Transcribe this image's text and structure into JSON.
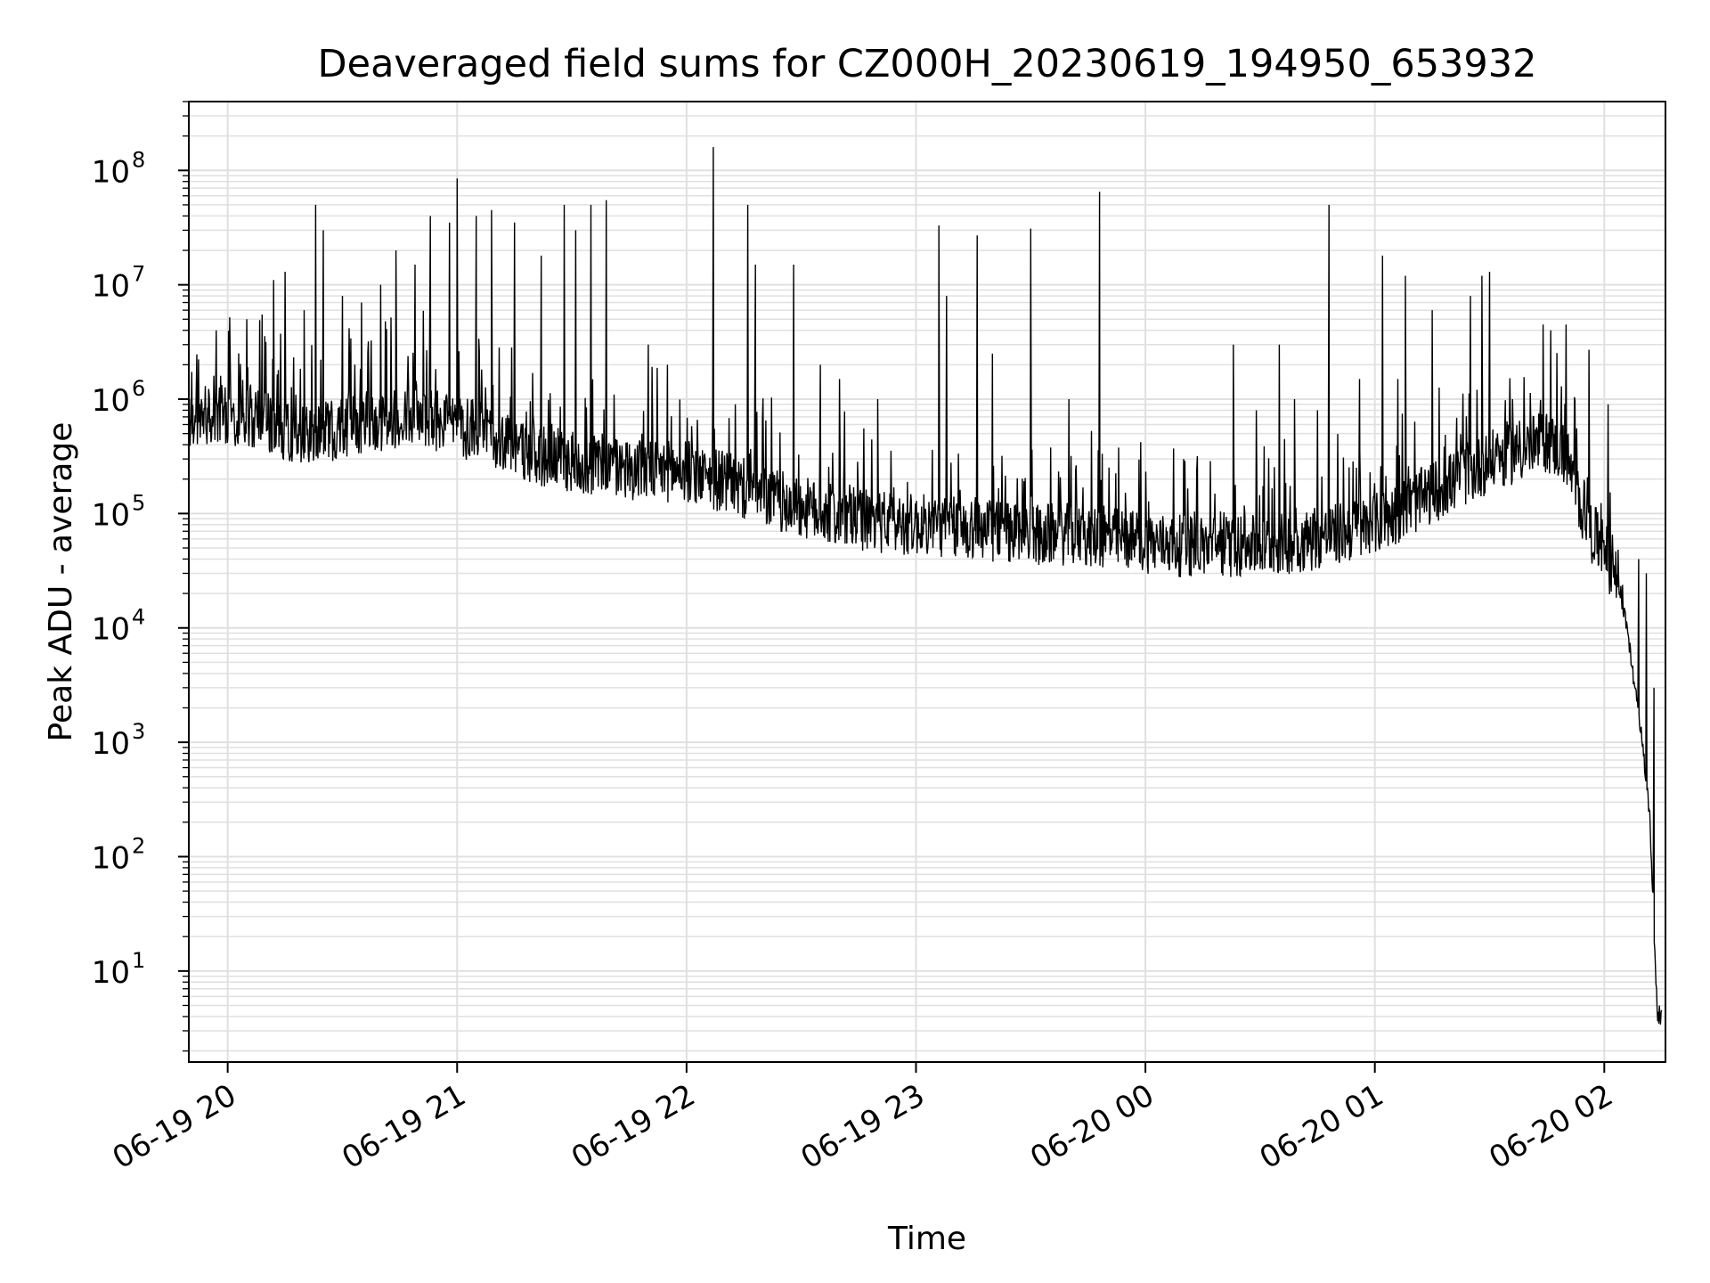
{
  "chart_data": {
    "type": "line",
    "title": "Deaveraged field sums for CZ000H_20230619_194950_653932",
    "xlabel": "Time",
    "ylabel": "Peak ADU - average",
    "x_scale": "time",
    "y_scale": "log",
    "xlim": [
      "2023-06-19 19:49:50",
      "2023-06-20 02:16:00"
    ],
    "ylim": [
      1.6,
      400000000
    ],
    "x_ticks": [
      {
        "label": "06-19 20",
        "time": "2023-06-19 20:00"
      },
      {
        "label": "06-19 21",
        "time": "2023-06-19 21:00"
      },
      {
        "label": "06-19 22",
        "time": "2023-06-19 22:00"
      },
      {
        "label": "06-19 23",
        "time": "2023-06-19 23:00"
      },
      {
        "label": "06-20 00",
        "time": "2023-06-20 00:00"
      },
      {
        "label": "06-20 01",
        "time": "2023-06-20 01:00"
      },
      {
        "label": "06-20 02",
        "time": "2023-06-20 02:00"
      }
    ],
    "y_ticks": [
      {
        "label": "10",
        "exp": "1",
        "value": 10
      },
      {
        "label": "10",
        "exp": "2",
        "value": 100
      },
      {
        "label": "10",
        "exp": "3",
        "value": 1000
      },
      {
        "label": "10",
        "exp": "4",
        "value": 10000
      },
      {
        "label": "10",
        "exp": "5",
        "value": 100000
      },
      {
        "label": "10",
        "exp": "6",
        "value": 1000000
      },
      {
        "label": "10",
        "exp": "7",
        "value": 10000000
      },
      {
        "label": "10",
        "exp": "8",
        "value": 100000000
      }
    ],
    "grid": true,
    "line_color": "#000000",
    "grid_color": "#e0e0e0",
    "series": [
      {
        "points": [
          [
            "2023-06-19 19:50",
            700000
          ],
          [
            "2023-06-19 20:00",
            800000
          ],
          [
            "2023-06-19 20:10",
            650000
          ],
          [
            "2023-06-19 20:20",
            500000
          ],
          [
            "2023-06-19 20:30",
            600000
          ],
          [
            "2023-06-19 20:40",
            700000
          ],
          [
            "2023-06-19 20:50",
            800000
          ],
          [
            "2023-06-19 21:00",
            600000
          ],
          [
            "2023-06-19 21:10",
            500000
          ],
          [
            "2023-06-19 21:20",
            350000
          ],
          [
            "2023-06-19 21:30",
            300000
          ],
          [
            "2023-06-19 21:40",
            280000
          ],
          [
            "2023-06-19 21:50",
            250000
          ],
          [
            "2023-06-19 22:00",
            250000
          ],
          [
            "2023-06-19 22:10",
            200000
          ],
          [
            "2023-06-19 22:20",
            150000
          ],
          [
            "2023-06-19 22:30",
            120000
          ],
          [
            "2023-06-19 22:40",
            100000
          ],
          [
            "2023-06-19 22:50",
            90000
          ],
          [
            "2023-06-19 23:00",
            85000
          ],
          [
            "2023-06-19 23:10",
            80000
          ],
          [
            "2023-06-19 23:20",
            75000
          ],
          [
            "2023-06-19 23:30",
            70000
          ],
          [
            "2023-06-19 23:40",
            70000
          ],
          [
            "2023-06-19 23:50",
            65000
          ],
          [
            "2023-06-20 00:00",
            60000
          ],
          [
            "2023-06-20 00:10",
            55000
          ],
          [
            "2023-06-20 00:20",
            55000
          ],
          [
            "2023-06-20 00:30",
            55000
          ],
          [
            "2023-06-20 00:40",
            60000
          ],
          [
            "2023-06-20 00:50",
            70000
          ],
          [
            "2023-06-20 01:00",
            85000
          ],
          [
            "2023-06-20 01:10",
            130000
          ],
          [
            "2023-06-20 01:20",
            200000
          ],
          [
            "2023-06-20 01:30",
            300000
          ],
          [
            "2023-06-20 01:40",
            400000
          ],
          [
            "2023-06-20 01:45",
            450000
          ],
          [
            "2023-06-20 01:50",
            350000
          ],
          [
            "2023-06-20 01:53",
            150000
          ],
          [
            "2023-06-20 01:57",
            70000
          ],
          [
            "2023-06-20 02:00",
            50000
          ],
          [
            "2023-06-20 02:03",
            30000
          ],
          [
            "2023-06-20 02:06",
            10000
          ],
          [
            "2023-06-20 02:08",
            3000
          ],
          [
            "2023-06-20 02:10",
            1000
          ],
          [
            "2023-06-20 02:12",
            200
          ],
          [
            "2023-06-20 02:13",
            20
          ],
          [
            "2023-06-20 02:14",
            4
          ],
          [
            "2023-06-20 02:15",
            4
          ]
        ],
        "noise_band_decades": 0.55,
        "spikes": [
          [
            "2023-06-19 19:50",
            1000000
          ],
          [
            "2023-06-19 19:57",
            4000000
          ],
          [
            "2023-06-19 20:05",
            5000000
          ],
          [
            "2023-06-19 20:09",
            5500000
          ],
          [
            "2023-06-19 20:12",
            11000000
          ],
          [
            "2023-06-19 20:15",
            13000000
          ],
          [
            "2023-06-19 20:20",
            6000000
          ],
          [
            "2023-06-19 20:23",
            50000000
          ],
          [
            "2023-06-19 20:25",
            30000000
          ],
          [
            "2023-06-19 20:30",
            8000000
          ],
          [
            "2023-06-19 20:35",
            7000000
          ],
          [
            "2023-06-19 20:40",
            10000000
          ],
          [
            "2023-06-19 20:44",
            20000000
          ],
          [
            "2023-06-19 20:49",
            15000000
          ],
          [
            "2023-06-19 20:53",
            40000000
          ],
          [
            "2023-06-19 20:58",
            35000000
          ],
          [
            "2023-06-19 21:00",
            85000000
          ],
          [
            "2023-06-19 21:05",
            40000000
          ],
          [
            "2023-06-19 21:09",
            45000000
          ],
          [
            "2023-06-19 21:15",
            35000000
          ],
          [
            "2023-06-19 21:22",
            18000000
          ],
          [
            "2023-06-19 21:28",
            50000000
          ],
          [
            "2023-06-19 21:31",
            30000000
          ],
          [
            "2023-06-19 21:35",
            50000000
          ],
          [
            "2023-06-19 21:39",
            55000000
          ],
          [
            "2023-06-19 21:50",
            3000000
          ],
          [
            "2023-06-19 21:55",
            2000000
          ],
          [
            "2023-06-19 22:07",
            160000000
          ],
          [
            "2023-06-19 22:16",
            50000000
          ],
          [
            "2023-06-19 22:18",
            15000000
          ],
          [
            "2023-06-19 22:28",
            15000000
          ],
          [
            "2023-06-19 22:35",
            2000000
          ],
          [
            "2023-06-19 22:40",
            1500000
          ],
          [
            "2023-06-19 22:50",
            1000000
          ],
          [
            "2023-06-19 23:06",
            33000000
          ],
          [
            "2023-06-19 23:08",
            8000000
          ],
          [
            "2023-06-19 23:16",
            27000000
          ],
          [
            "2023-06-19 23:20",
            2500000
          ],
          [
            "2023-06-19 23:30",
            31000000
          ],
          [
            "2023-06-19 23:40",
            1000000
          ],
          [
            "2023-06-19 23:48",
            65000000
          ],
          [
            "2023-06-20 00:10",
            300000
          ],
          [
            "2023-06-20 00:23",
            3000000
          ],
          [
            "2023-06-20 00:29",
            800000
          ],
          [
            "2023-06-20 00:35",
            3000000
          ],
          [
            "2023-06-20 00:39",
            1000000
          ],
          [
            "2023-06-20 00:45",
            800000
          ],
          [
            "2023-06-20 00:48",
            50000000
          ],
          [
            "2023-06-20 00:56",
            1500000
          ],
          [
            "2023-06-20 01:02",
            18000000
          ],
          [
            "2023-06-20 01:06",
            1500000
          ],
          [
            "2023-06-20 01:08",
            12000000
          ],
          [
            "2023-06-20 01:15",
            6000000
          ],
          [
            "2023-06-20 01:25",
            8000000
          ],
          [
            "2023-06-20 01:28",
            12000000
          ],
          [
            "2023-06-20 01:30",
            13000000
          ],
          [
            "2023-06-20 01:36",
            1000000
          ],
          [
            "2023-06-20 01:44",
            4500000
          ],
          [
            "2023-06-20 01:46",
            4000000
          ],
          [
            "2023-06-20 01:50",
            4500000
          ],
          [
            "2023-06-20 01:56",
            2700000
          ],
          [
            "2023-06-20 02:01",
            900000
          ],
          [
            "2023-06-20 02:09",
            40000
          ],
          [
            "2023-06-20 02:11",
            30000
          ],
          [
            "2023-06-20 02:13",
            3000
          ]
        ]
      }
    ]
  }
}
